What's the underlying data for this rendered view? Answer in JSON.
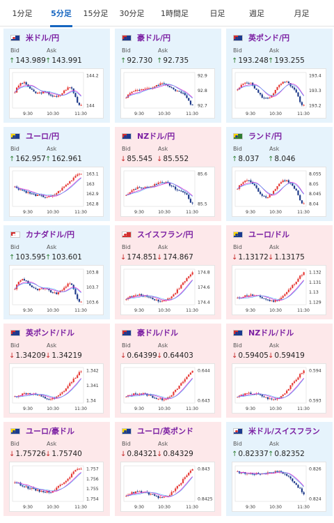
{
  "tabs": [
    {
      "label": "1分足",
      "active": false
    },
    {
      "label": "5分足",
      "active": true
    },
    {
      "label": "15分足",
      "active": false
    },
    {
      "label": "30分足",
      "active": false
    },
    {
      "label": "1時間足",
      "active": false
    },
    {
      "label": "日足",
      "active": false
    },
    {
      "label": "週足",
      "active": false
    },
    {
      "label": "月足",
      "active": false
    }
  ],
  "bid_label": "Bid",
  "ask_label": "Ask",
  "x_ticks": [
    "9:30",
    "10:30",
    "11:30"
  ],
  "colors": {
    "up_bg": "#e6f3fc",
    "down_bg": "#fde8ea",
    "title": "#7b1fa2",
    "candle_up": "#e53935",
    "candle_down": "#1e3a8a",
    "ma": "#d633d6",
    "tab_active": "#1565c0",
    "arrow_up": "#2e7d32",
    "arrow_down": "#c62828"
  },
  "pairs": [
    {
      "title": "米ドル/円",
      "direction": "up",
      "flag": "us",
      "bid": "143.989",
      "ask": "143.991",
      "y_ticks": [
        "144.2",
        "144"
      ],
      "trend": "down-end"
    },
    {
      "title": "豪ドル/円",
      "direction": "up",
      "flag": "au",
      "bid": "92.730",
      "ask": "92.735",
      "y_ticks": [
        "92.9",
        "92.8",
        "92.7"
      ],
      "trend": "up-down"
    },
    {
      "title": "英ポンド/円",
      "direction": "up",
      "flag": "gb",
      "bid": "193.248",
      "ask": "193.255",
      "y_ticks": [
        "193.4",
        "193.3",
        "193.2"
      ],
      "trend": "wave-down"
    },
    {
      "title": "ユーロ/円",
      "direction": "up",
      "flag": "eu",
      "bid": "162.957",
      "ask": "162.961",
      "y_ticks": [
        "163.1",
        "163",
        "162.9",
        "162.8"
      ],
      "trend": "down-up"
    },
    {
      "title": "NZドル/円",
      "direction": "down",
      "flag": "nz",
      "bid": "85.545",
      "ask": "85.552",
      "y_ticks": [
        "85.6",
        "85.5"
      ],
      "trend": "up-down"
    },
    {
      "title": "ランド/円",
      "direction": "up",
      "flag": "za",
      "bid": "8.037",
      "ask": "8.046",
      "y_ticks": [
        "8.055",
        "8.05",
        "8.045",
        "8.04"
      ],
      "trend": "wave-down"
    },
    {
      "title": "カナダドル/円",
      "direction": "up",
      "flag": "ca",
      "bid": "103.595",
      "ask": "103.601",
      "y_ticks": [
        "103.8",
        "103.7",
        "103.6"
      ],
      "trend": "down-end"
    },
    {
      "title": "スイスフラン/円",
      "direction": "down",
      "flag": "ch",
      "bid": "174.851",
      "ask": "174.867",
      "y_ticks": [
        "174.8",
        "174.6",
        "174.4"
      ],
      "trend": "rise"
    },
    {
      "title": "ユーロ/ドル",
      "direction": "down",
      "flag": "eu",
      "bid": "1.13172",
      "ask": "1.13175",
      "y_ticks": [
        "1.132",
        "1.131",
        "1.13",
        "1.129"
      ],
      "trend": "rise"
    },
    {
      "title": "英ポンド/ドル",
      "direction": "down",
      "flag": "gb",
      "bid": "1.34209",
      "ask": "1.34219",
      "y_ticks": [
        "1.342",
        "1.341",
        "1.34"
      ],
      "trend": "rise"
    },
    {
      "title": "豪ドル/ドル",
      "direction": "down",
      "flag": "au",
      "bid": "0.64399",
      "ask": "0.64403",
      "y_ticks": [
        "0.644",
        "0.643"
      ],
      "trend": "rise"
    },
    {
      "title": "NZドル/ドル",
      "direction": "down",
      "flag": "nz",
      "bid": "0.59405",
      "ask": "0.59419",
      "y_ticks": [
        "0.594",
        "0.593"
      ],
      "trend": "rise"
    },
    {
      "title": "ユーロ/豪ドル",
      "direction": "down",
      "flag": "eu",
      "bid": "1.75726",
      "ask": "1.75740",
      "y_ticks": [
        "1.757",
        "1.756",
        "1.755",
        "1.754"
      ],
      "trend": "down-up"
    },
    {
      "title": "ユーロ/英ポンド",
      "direction": "down",
      "flag": "eu",
      "bid": "0.84321",
      "ask": "0.84329",
      "y_ticks": [
        "0.843",
        "0.8425"
      ],
      "trend": "rise"
    },
    {
      "title": "米ドル/スイスフラン",
      "direction": "up",
      "flag": "us",
      "bid": "0.82337",
      "ask": "0.82352",
      "y_ticks": [
        "0.826",
        "0.824"
      ],
      "trend": "fall"
    }
  ]
}
